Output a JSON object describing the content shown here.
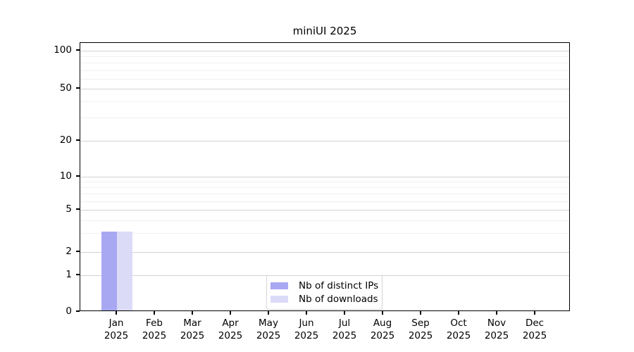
{
  "chart_data": {
    "type": "bar",
    "title": "miniUI 2025",
    "categories": [
      "Jan",
      "Feb",
      "Mar",
      "Apr",
      "May",
      "Jun",
      "Jul",
      "Aug",
      "Sep",
      "Oct",
      "Nov",
      "Dec"
    ],
    "year_label": "2025",
    "series": [
      {
        "name": "Nb of distinct IPs",
        "color": "#a8a8f2",
        "values": [
          3,
          0,
          0,
          0,
          0,
          0,
          0,
          0,
          0,
          0,
          0,
          0
        ]
      },
      {
        "name": "Nb of downloads",
        "color": "#dbdbf8",
        "values": [
          3,
          0,
          0,
          0,
          0,
          0,
          0,
          0,
          0,
          0,
          0,
          0
        ]
      }
    ],
    "xlabel": "",
    "ylabel": "",
    "yscale": "symlog",
    "ylim": [
      0,
      110
    ],
    "yticks_major": [
      0,
      1,
      2,
      5,
      10,
      20,
      50,
      100
    ],
    "yticks_minor": [
      3,
      4,
      6,
      7,
      8,
      9,
      30,
      40,
      60,
      70,
      80,
      90
    ],
    "grid": "horizontal major+minor",
    "legend_position": "lower center",
    "colors": {
      "axis": "#000000",
      "text": "#000000",
      "grid_major": "#d2d2d2",
      "grid_minor": "#f0f0f0",
      "legend_border": "#d5d5d5",
      "background": "#ffffff"
    }
  }
}
